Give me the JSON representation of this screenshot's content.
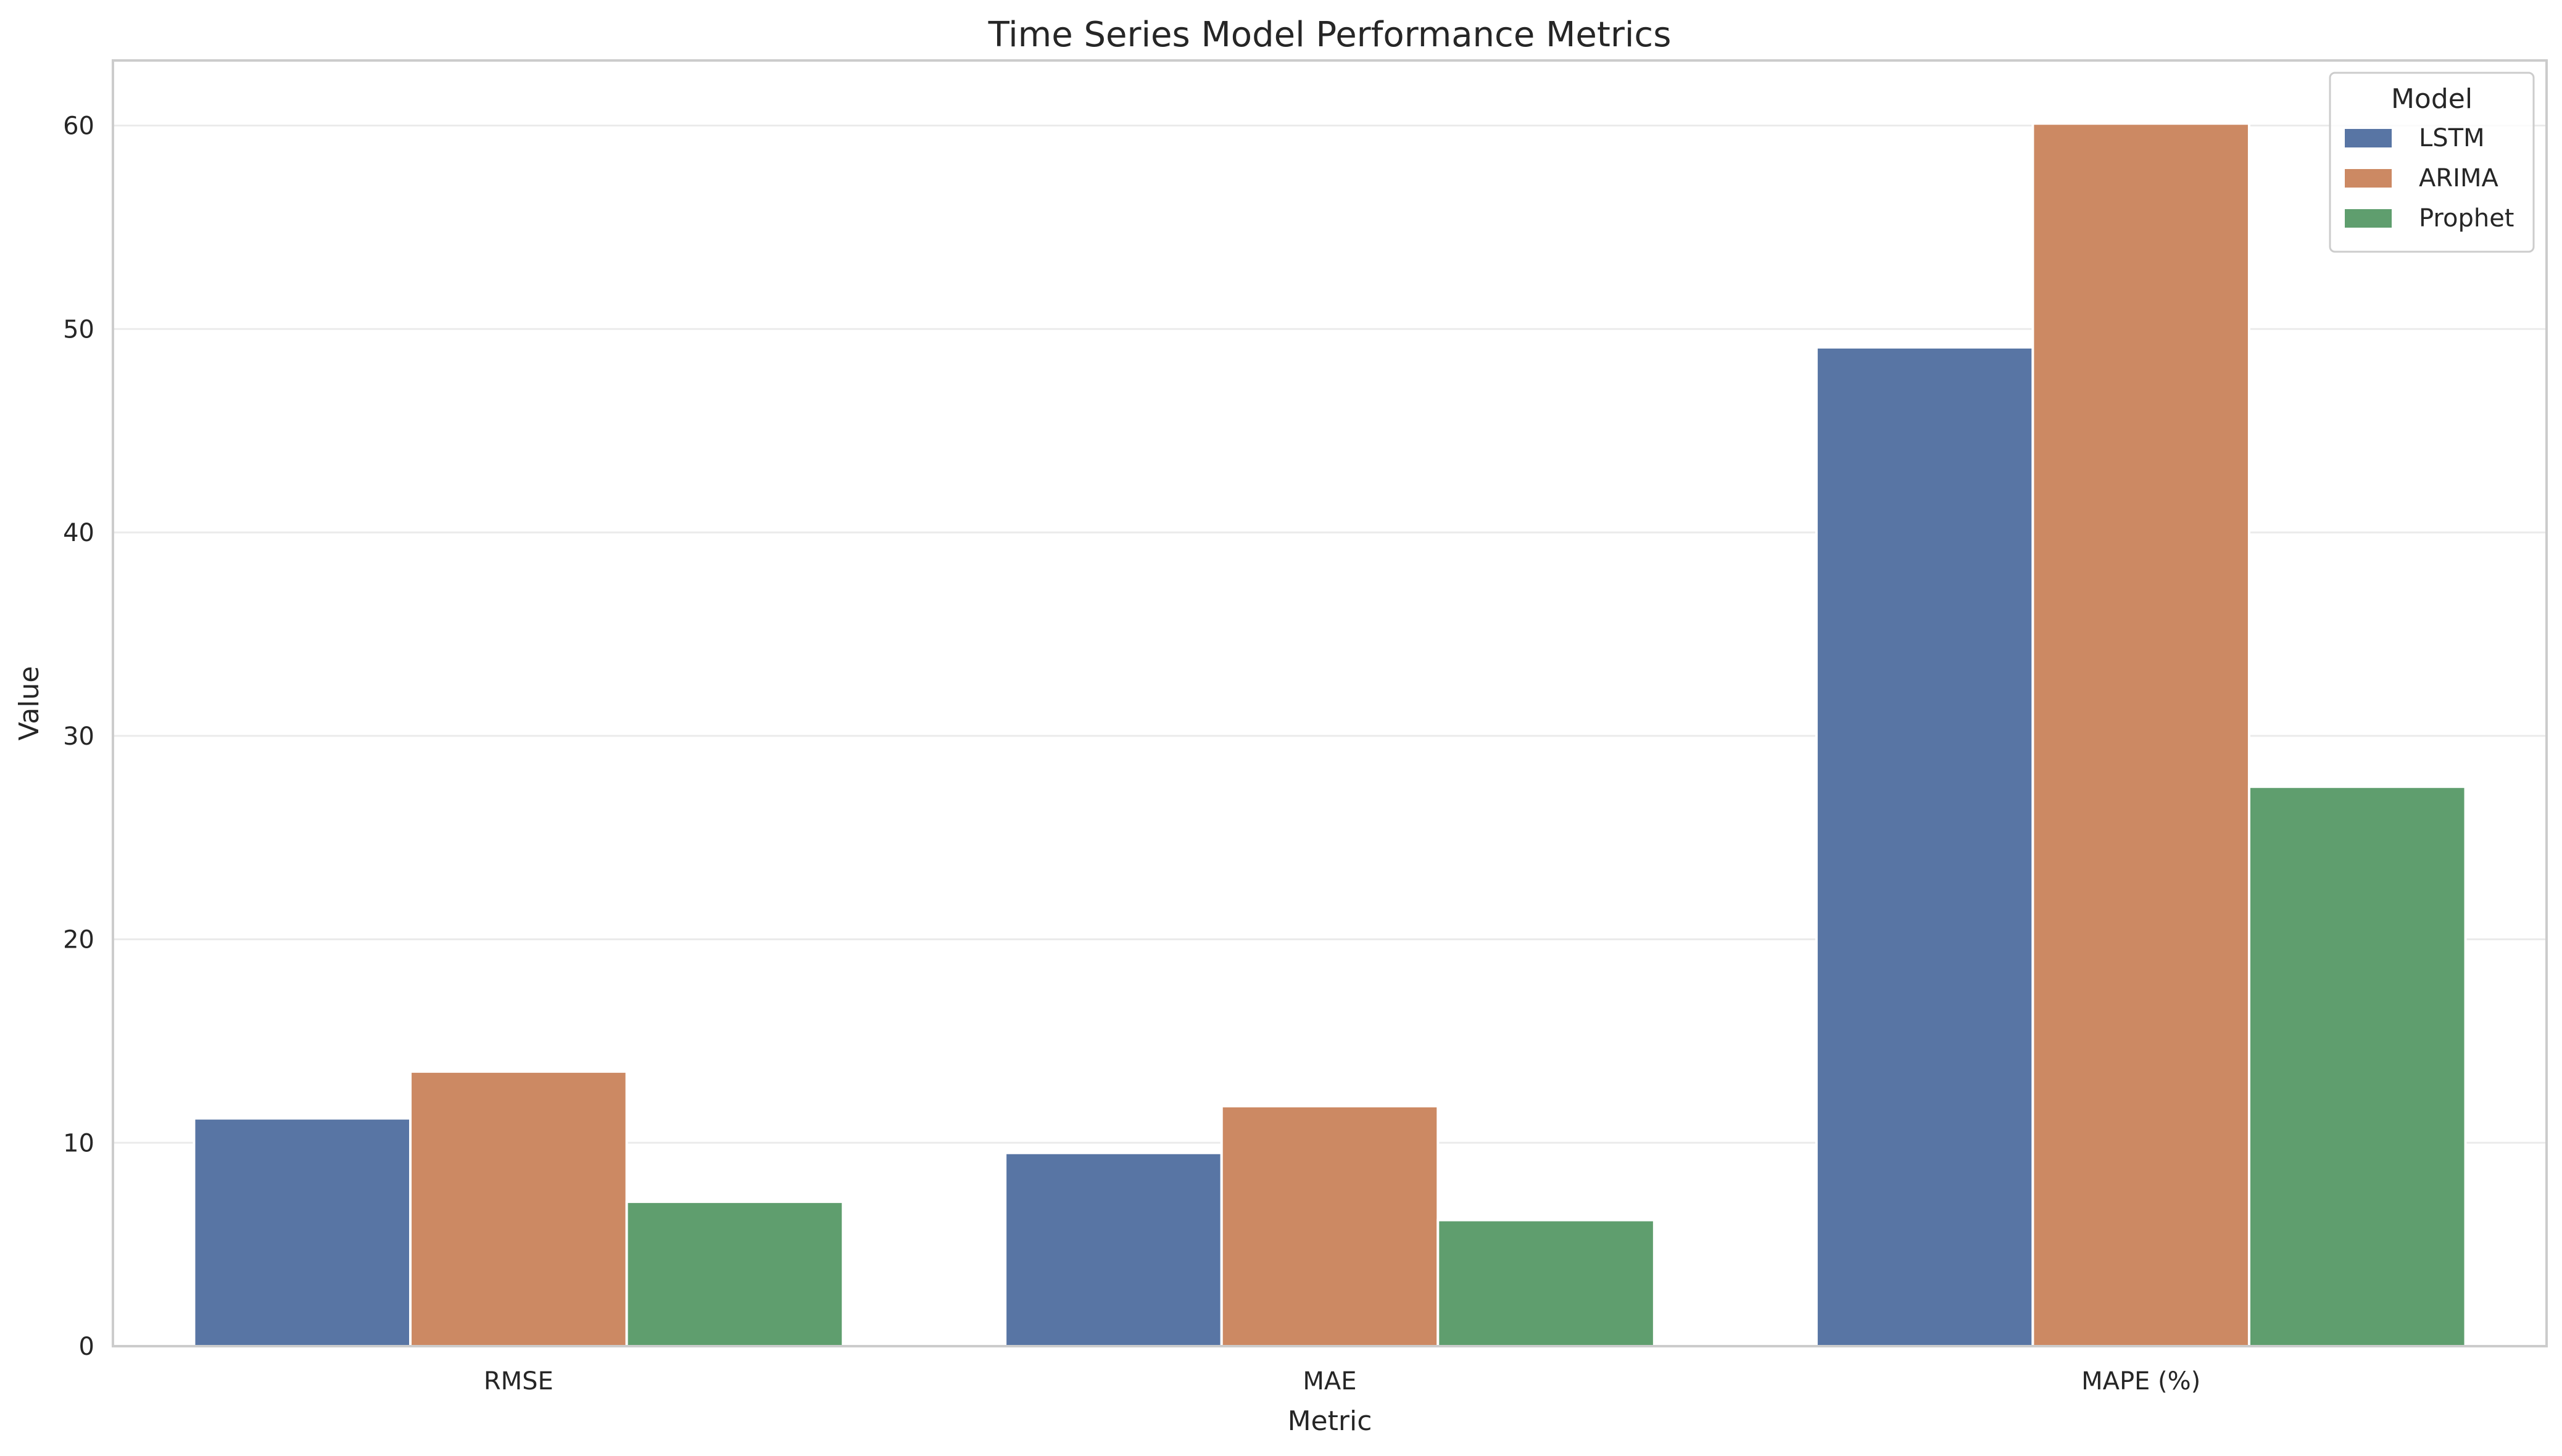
{
  "chart_data": {
    "type": "bar",
    "title": "Time Series Model Performance Metrics",
    "xlabel": "Metric",
    "ylabel": "Value",
    "categories": [
      "RMSE",
      "MAE",
      "MAPE (%)"
    ],
    "series": [
      {
        "name": "LSTM",
        "values": [
          11.2,
          9.5,
          49.1
        ],
        "color": "#5875a4"
      },
      {
        "name": "ARIMA",
        "values": [
          13.5,
          11.8,
          60.1
        ],
        "color": "#cc8963"
      },
      {
        "name": "Prophet",
        "values": [
          7.1,
          6.2,
          27.5
        ],
        "color": "#5f9e6e"
      }
    ],
    "ylim": [
      0,
      63.2
    ],
    "yticks": [
      0,
      10,
      20,
      30,
      40,
      50,
      60
    ],
    "grid": "horizontal",
    "legend": {
      "title": "Model",
      "placement": "top-right"
    },
    "colors": {
      "grid": "#ebebeb",
      "spine": "#cccccc",
      "text": "#262626",
      "background": "#ffffff"
    }
  }
}
